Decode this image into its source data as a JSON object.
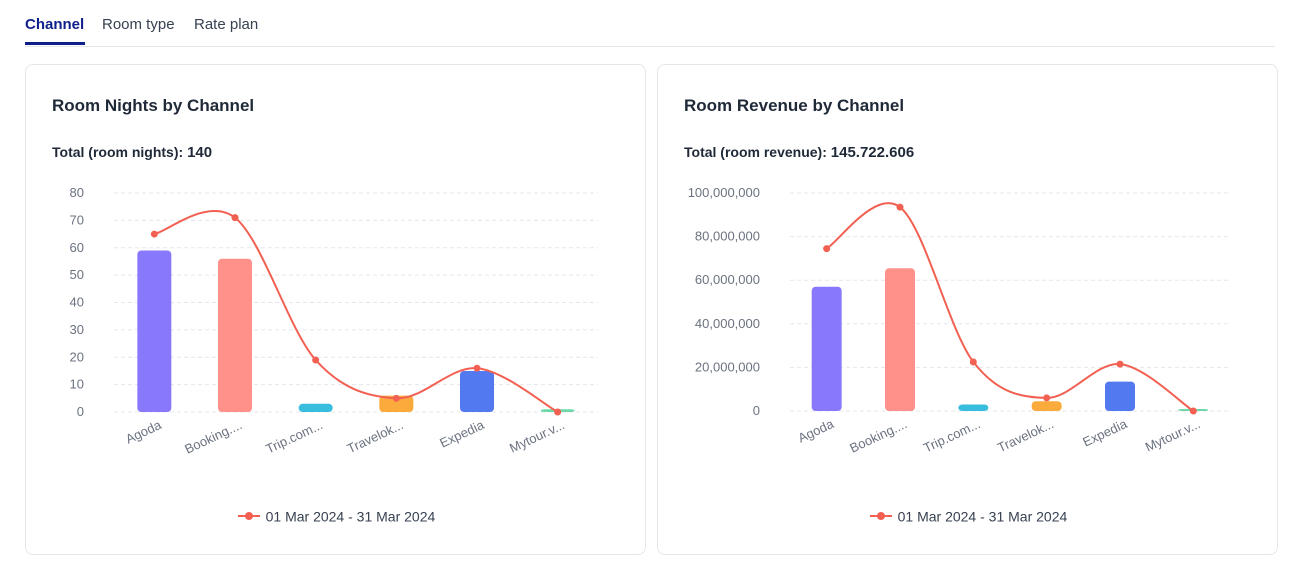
{
  "tabs": [
    {
      "label": "Channel",
      "active": true
    },
    {
      "label": "Room type",
      "active": false
    },
    {
      "label": "Rate plan",
      "active": false
    }
  ],
  "colors": {
    "accent": "#0f1f8a",
    "line": "#f26052",
    "bars": [
      "#8878fb",
      "#ff918a",
      "#38bdde",
      "#fbab3c",
      "#5279f0",
      "#6fd8a8"
    ]
  },
  "cards": [
    {
      "title": "Room Nights by Channel",
      "total_label": "Total (room nights):",
      "total_value": "140",
      "legend": "01 Mar 2024 - 31 Mar 2024"
    },
    {
      "title": "Room Revenue by Channel",
      "total_label": "Total (room revenue):",
      "total_value": "145.722.606",
      "legend": "01 Mar 2024 - 31 Mar 2024"
    }
  ],
  "chart_data": [
    {
      "type": "bar",
      "categories": [
        "Agoda",
        "Booking....",
        "Trip.com...",
        "Travelok...",
        "Expedia",
        "Mytour.v..."
      ],
      "values": [
        59,
        56,
        3,
        6,
        15,
        1
      ],
      "series": [
        {
          "name": "01 Mar 2024 - 31 Mar 2024",
          "type": "line",
          "values": [
            65,
            71,
            19,
            5,
            16,
            0
          ]
        }
      ],
      "yticks": [
        "0",
        "10",
        "20",
        "30",
        "40",
        "50",
        "60",
        "70",
        "80"
      ],
      "ylim": [
        0,
        80
      ],
      "grid": true,
      "legend_position": "bottom"
    },
    {
      "type": "bar",
      "categories": [
        "Agoda",
        "Booking....",
        "Trip.com...",
        "Travelok...",
        "Expedia",
        "Mytour.v..."
      ],
      "values": [
        57000000,
        65500000,
        3000000,
        4500000,
        13500000,
        500000
      ],
      "series": [
        {
          "name": "01 Mar 2024 - 31 Mar 2024",
          "type": "line",
          "values": [
            74500000,
            93500000,
            22500000,
            6000000,
            21500000,
            0
          ]
        }
      ],
      "yticks": [
        "0",
        "20,000,000",
        "40,000,000",
        "60,000,000",
        "80,000,000",
        "100,000,000"
      ],
      "ylim": [
        0,
        100000000
      ],
      "grid": true,
      "legend_position": "bottom"
    }
  ]
}
